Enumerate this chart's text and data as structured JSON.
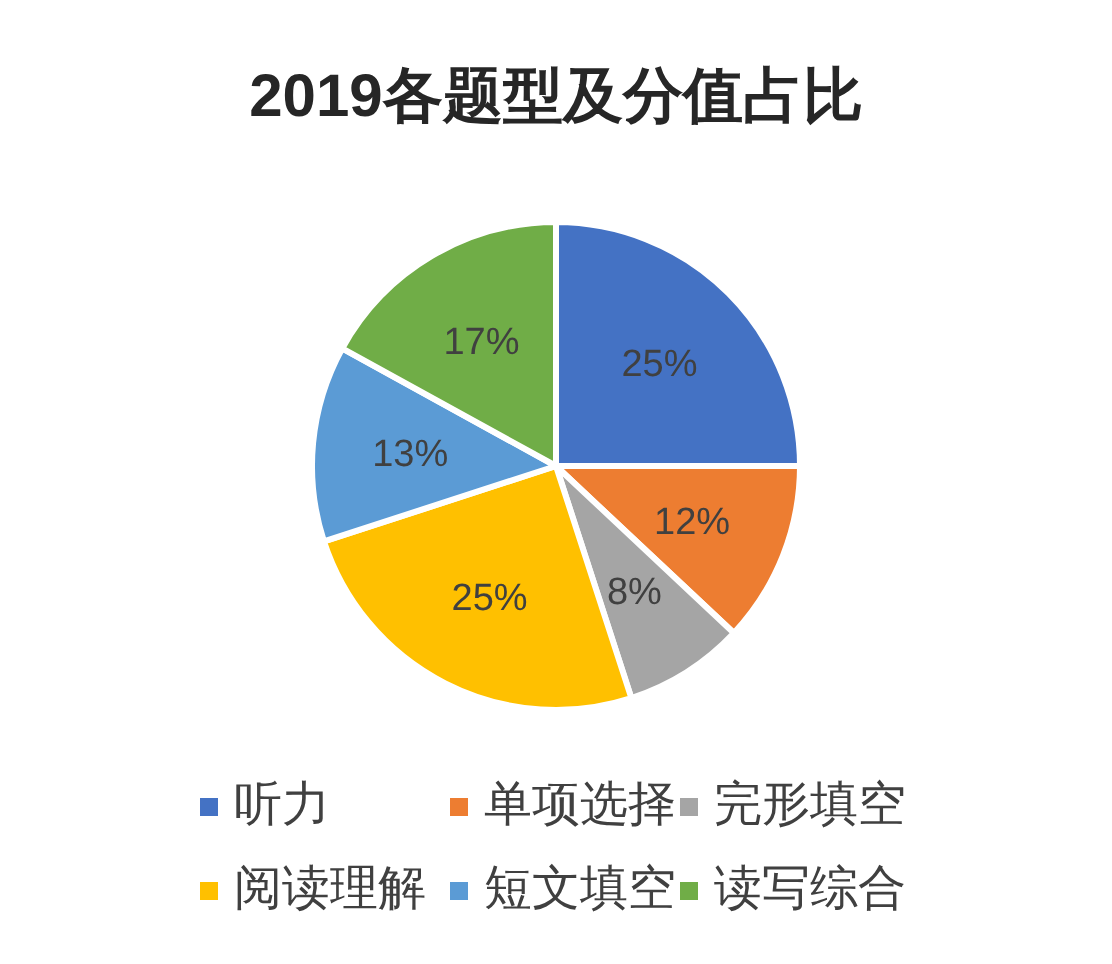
{
  "chart_data": {
    "type": "pie",
    "title": "2019各题型及分值占比",
    "categories": [
      "听力",
      "单项选择",
      "完形填空",
      "阅读理解",
      "短文填空",
      "读写综合"
    ],
    "values": [
      25,
      12,
      8,
      25,
      13,
      17
    ],
    "value_labels": [
      "25%",
      "12%",
      "8%",
      "25%",
      "13%",
      "17%"
    ],
    "colors": [
      "#4472c4",
      "#ed7d31",
      "#a5a5a5",
      "#ffc000",
      "#5b9bd5",
      "#70ad47"
    ],
    "legend": "bottom"
  }
}
